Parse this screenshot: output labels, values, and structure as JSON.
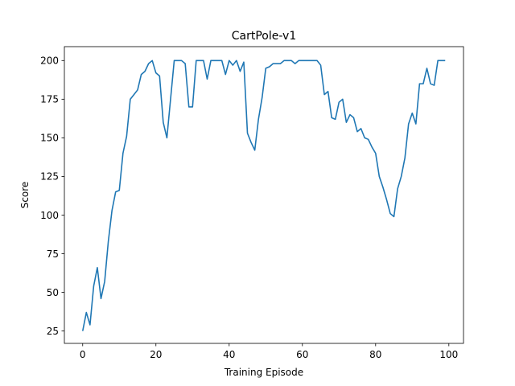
{
  "chart_data": {
    "type": "line",
    "title": "CartPole-v1",
    "xlabel": "Training Episode",
    "ylabel": "Score",
    "xlim": [
      -5,
      104
    ],
    "ylim": [
      17,
      209
    ],
    "xticks": [
      0,
      20,
      40,
      60,
      80,
      100
    ],
    "yticks": [
      25,
      50,
      75,
      100,
      125,
      150,
      175,
      200
    ],
    "grid": false,
    "line_color": "#1f77b4",
    "series": [
      {
        "x": [
          0,
          1,
          2,
          3,
          4,
          5,
          6,
          7,
          8,
          9,
          10,
          11,
          12,
          13,
          14,
          15,
          16,
          17,
          18,
          19,
          20,
          21,
          22,
          23,
          24,
          25,
          26,
          27,
          28,
          29,
          30,
          31,
          32,
          33,
          34,
          35,
          36,
          37,
          38,
          39,
          40,
          41,
          42,
          43,
          44,
          45,
          46,
          47,
          48,
          49,
          50,
          51,
          52,
          53,
          54,
          55,
          56,
          57,
          58,
          59,
          60,
          61,
          62,
          63,
          64,
          65,
          66,
          67,
          68,
          69,
          70,
          71,
          72,
          73,
          74,
          75,
          76,
          77,
          78,
          79,
          80,
          81,
          82,
          83,
          84,
          85,
          86,
          87,
          88,
          89,
          90,
          91,
          92,
          93,
          94,
          95,
          96,
          97,
          98,
          99
        ],
        "y": [
          25,
          37,
          29,
          54,
          66,
          46,
          57,
          83,
          103,
          115,
          116,
          140,
          151,
          175,
          178,
          181,
          191,
          193,
          198,
          200,
          192,
          190,
          160,
          150,
          175,
          200,
          200,
          200,
          198,
          170,
          170,
          200,
          200,
          200,
          188,
          200,
          200,
          200,
          200,
          191,
          200,
          197,
          200,
          193,
          199,
          153,
          147,
          142,
          162,
          176,
          195,
          196,
          198,
          198,
          198,
          200,
          200,
          200,
          198,
          200,
          200,
          200,
          200,
          200,
          200,
          197,
          178,
          180,
          163,
          162,
          173,
          175,
          160,
          165,
          163,
          154,
          156,
          150,
          149,
          144,
          140,
          125,
          118,
          110,
          101,
          99,
          117,
          125,
          137,
          159,
          166,
          159,
          185,
          185,
          195,
          185,
          184,
          200,
          200,
          200
        ]
      }
    ]
  }
}
